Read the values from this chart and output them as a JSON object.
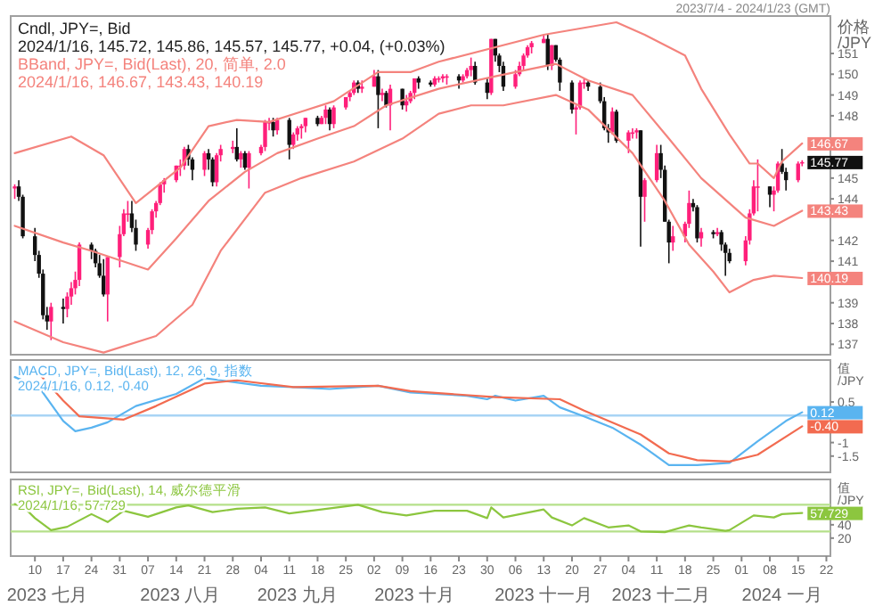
{
  "chart_data": [
    {
      "type": "candlestick",
      "subtitle": "2023/7/4 - 2024/1/23 (GMT)",
      "ylabel": "价格 /JPY",
      "tick_labels": "y",
      "xlim": [
        "2023-07-04",
        "2024-01-23"
      ],
      "ylim": [
        136.5,
        152.8
      ],
      "yticks": [
        137,
        138,
        139,
        141,
        142,
        144,
        145,
        148,
        149,
        150,
        151
      ],
      "colors": [
        "#ff1f7a",
        "#111111",
        "#111111",
        "#111111",
        "#111111",
        "#111111",
        "#111111",
        "#ff1f7a",
        "#111111",
        "#ff1f7a",
        "#ff1f7a",
        "#ff1f7a",
        "#ff1f7a",
        "#111111",
        "#111111",
        "#111111",
        "#111111",
        "#ff1f7a",
        "#ff1f7a",
        "#ff1f7a",
        "#ff1f7a",
        "#111111",
        "#111111",
        "#ff1f7a",
        "#ff1f7a",
        "#ff1f7a",
        "#ff1f7a",
        "#ff1f7a",
        "#ff1f7a",
        "#ff1f7a",
        "#ff1f7a",
        "#111111",
        "#111111",
        "#ff1f7a",
        "#111111",
        "#111111",
        "#ff1f7a",
        "#ff1f7a",
        "#ff1f7a",
        "#111111",
        "#ff1f7a",
        "#111111",
        "#ff1f7a",
        "#ff1f7a",
        "#ff1f7a",
        "#ff1f7a",
        "#111111",
        "#ff1f7a",
        "#111111",
        "#ff1f7a",
        "#ff1f7a",
        "#ff1f7a",
        "#ff1f7a",
        "#111111",
        "#ff1f7a",
        "#ff1f7a",
        "#111111",
        "#ff1f7a",
        "#ff1f7a",
        "#ff1f7a",
        "#ff1f7a",
        "#111111",
        "#ff1f7a",
        "#ff1f7a",
        "#111111",
        "#ff1f7a",
        "#111111",
        "#ff1f7a",
        "#111111",
        "#ff1f7a",
        "#ff1f7a",
        "#ff1f7a",
        "#111111",
        "#111111",
        "#ff1f7a",
        "#ff1f7a",
        "#ff1f7a",
        "#ff1f7a",
        "#111111",
        "#ff1f7a",
        "#ff1f7a",
        "#ff1f7a",
        "#111111",
        "#111111",
        "#ff1f7a",
        "#111111",
        "#111111",
        "#111111",
        "#ff1f7a",
        "#ff1f7a",
        "#ff1f7a",
        "#ff1f7a",
        "#ff1f7a",
        "#ff1f7a",
        "#111111",
        "#ff1f7a",
        "#111111",
        "#111111",
        "#111111",
        "#ff1f7a",
        "#ff1f7a",
        "#ff1f7a",
        "#111111",
        "#111111",
        "#111111",
        "#111111",
        "#ff1f7a",
        "#111111",
        "#ff1f7a",
        "#ff1f7a",
        "#ff1f7a",
        "#111111",
        "#ff1f7a",
        "#ff1f7a",
        "#111111",
        "#111111",
        "#111111",
        "#ff1f7a",
        "#ff1f7a",
        "#ff1f7a",
        "#111111",
        "#111111",
        "#ff1f7a",
        "#111111",
        "#ff1f7a",
        "#111111",
        "#111111",
        "#111111",
        "#ff1f7a",
        "#ff1f7a",
        "#ff1f7a",
        "#ff1f7a",
        "#111111",
        "#ff1f7a",
        "#ff1f7a",
        "#111111",
        "#111111",
        "#ff1f7a",
        "#ff1f7a"
      ],
      "annotations": [
        "Cndl, JPY=, Bid",
        "2024/1/16, 145.72, 145.86, 145.57, 145.77, +0.04, (+0.03%)",
        "BBand, JPY=, Bid(Last), 20, 简单, 2.0",
        "2024/1/16, 146.67, 143.43, 140.19",
        {
          "text": "145.77",
          "x": "2024-01-16",
          "y": 145.77
        }
      ],
      "x": [
        "2023-07-05",
        "2023-07-06",
        "2023-07-07",
        "2023-07-10",
        "2023-07-11",
        "2023-07-12",
        "2023-07-13",
        "2023-07-14",
        "2023-07-17",
        "2023-07-18",
        "2023-07-19",
        "2023-07-20",
        "2023-07-21",
        "2023-07-24",
        "2023-07-25",
        "2023-07-26",
        "2023-07-27",
        "2023-07-28",
        "2023-07-31",
        "2023-08-01",
        "2023-08-02",
        "2023-08-03",
        "2023-08-04",
        "2023-08-07",
        "2023-08-08",
        "2023-08-09",
        "2023-08-10",
        "2023-08-11",
        "2023-08-14",
        "2023-08-15",
        "2023-08-16",
        "2023-08-17",
        "2023-08-18",
        "2023-08-21",
        "2023-08-22",
        "2023-08-23",
        "2023-08-24",
        "2023-08-25",
        "2023-08-28",
        "2023-08-29",
        "2023-08-30",
        "2023-08-31",
        "2023-09-01",
        "2023-09-04",
        "2023-09-05",
        "2023-09-06",
        "2023-09-07",
        "2023-09-08",
        "2023-09-11",
        "2023-09-12",
        "2023-09-13",
        "2023-09-14",
        "2023-09-15",
        "2023-09-18",
        "2023-09-19",
        "2023-09-20",
        "2023-09-21",
        "2023-09-22",
        "2023-09-25",
        "2023-09-26",
        "2023-09-27",
        "2023-09-28",
        "2023-09-29",
        "2023-10-02",
        "2023-10-03",
        "2023-10-04",
        "2023-10-05",
        "2023-10-06",
        "2023-10-09",
        "2023-10-10",
        "2023-10-11",
        "2023-10-12",
        "2023-10-13",
        "2023-10-16",
        "2023-10-17",
        "2023-10-18",
        "2023-10-19",
        "2023-10-20",
        "2023-10-23",
        "2023-10-24",
        "2023-10-25",
        "2023-10-26",
        "2023-10-27",
        "2023-10-30",
        "2023-10-31",
        "2023-11-01",
        "2023-11-02",
        "2023-11-03",
        "2023-11-06",
        "2023-11-07",
        "2023-11-08",
        "2023-11-09",
        "2023-11-10",
        "2023-11-13",
        "2023-11-14",
        "2023-11-15",
        "2023-11-16",
        "2023-11-17",
        "2023-11-20",
        "2023-11-21",
        "2023-11-22",
        "2023-11-23",
        "2023-11-24",
        "2023-11-27",
        "2023-11-28",
        "2023-11-29",
        "2023-11-30",
        "2023-12-01",
        "2023-12-04",
        "2023-12-05",
        "2023-12-06",
        "2023-12-07",
        "2023-12-08",
        "2023-12-11",
        "2023-12-12",
        "2023-12-13",
        "2023-12-14",
        "2023-12-15",
        "2023-12-18",
        "2023-12-19",
        "2023-12-20",
        "2023-12-21",
        "2023-12-22",
        "2023-12-25",
        "2023-12-26",
        "2023-12-27",
        "2023-12-28",
        "2023-12-29",
        "2024-01-02",
        "2024-01-03",
        "2024-01-04",
        "2024-01-05",
        "2024-01-08",
        "2024-01-09",
        "2024-01-10",
        "2024-01-11",
        "2024-01-12",
        "2024-01-15",
        "2024-01-16"
      ],
      "ohlc": [
        [
          144.5,
          144.7,
          144.0,
          144.6
        ],
        [
          144.6,
          144.9,
          143.9,
          144.1
        ],
        [
          144.1,
          144.2,
          142.1,
          142.2
        ],
        [
          142.2,
          142.6,
          141.0,
          141.3
        ],
        [
          141.3,
          141.5,
          140.2,
          140.4
        ],
        [
          140.4,
          140.6,
          138.2,
          138.4
        ],
        [
          138.4,
          138.8,
          137.7,
          138.1
        ],
        [
          138.1,
          139.0,
          137.2,
          138.8
        ],
        [
          138.8,
          139.2,
          138.0,
          138.7
        ],
        [
          138.7,
          139.5,
          138.3,
          139.3
        ],
        [
          139.3,
          140.0,
          138.9,
          139.7
        ],
        [
          139.7,
          140.5,
          139.4,
          140.1
        ],
        [
          140.1,
          141.9,
          139.8,
          141.8
        ],
        [
          141.8,
          141.9,
          141.1,
          141.5
        ],
        [
          141.5,
          141.6,
          140.7,
          140.9
        ],
        [
          140.9,
          141.3,
          140.2,
          140.3
        ],
        [
          140.3,
          141.1,
          139.3,
          139.4
        ],
        [
          139.4,
          141.2,
          138.1,
          141.2
        ],
        [
          141.2,
          142.7,
          140.7,
          142.3
        ],
        [
          142.3,
          143.5,
          142.2,
          143.3
        ],
        [
          143.3,
          143.9,
          142.9,
          143.3
        ],
        [
          143.3,
          143.9,
          142.4,
          142.6
        ],
        [
          142.6,
          143.0,
          141.5,
          141.8
        ],
        [
          141.8,
          142.6,
          141.6,
          142.5
        ],
        [
          142.5,
          143.5,
          142.3,
          143.4
        ],
        [
          143.4,
          143.9,
          143.1,
          143.8
        ],
        [
          143.8,
          144.8,
          143.7,
          144.7
        ],
        [
          144.7,
          145.0,
          144.3,
          144.9
        ],
        [
          144.9,
          145.6,
          144.8,
          145.6
        ],
        [
          145.6,
          145.9,
          145.1,
          145.6
        ],
        [
          145.6,
          146.5,
          145.4,
          146.4
        ],
        [
          146.4,
          146.6,
          145.6,
          145.9
        ],
        [
          145.9,
          146.0,
          144.9,
          145.4
        ],
        [
          145.4,
          146.3,
          145.1,
          146.2
        ],
        [
          146.2,
          146.4,
          145.4,
          145.9
        ],
        [
          145.9,
          146.0,
          144.6,
          144.8
        ],
        [
          144.8,
          146.2,
          144.6,
          146.1
        ],
        [
          146.1,
          146.6,
          145.8,
          146.4
        ],
        [
          146.4,
          146.8,
          146.2,
          146.5
        ],
        [
          146.5,
          147.4,
          145.8,
          145.9
        ],
        [
          145.9,
          146.3,
          145.5,
          146.2
        ],
        [
          146.2,
          146.3,
          145.4,
          145.5
        ],
        [
          145.5,
          146.3,
          144.5,
          146.2
        ],
        [
          146.2,
          146.6,
          146.1,
          146.5
        ],
        [
          146.5,
          147.8,
          146.3,
          147.7
        ],
        [
          147.7,
          147.9,
          147.3,
          147.7
        ],
        [
          147.7,
          147.9,
          147.0,
          147.3
        ],
        [
          147.3,
          147.9,
          147.1,
          147.8
        ],
        [
          147.8,
          147.9,
          145.9,
          146.6
        ],
        [
          146.6,
          147.2,
          146.4,
          147.1
        ],
        [
          147.1,
          147.5,
          146.8,
          147.4
        ],
        [
          147.4,
          147.6,
          146.9,
          147.5
        ],
        [
          147.5,
          147.9,
          147.2,
          147.9
        ],
        [
          147.9,
          148.0,
          147.5,
          147.6
        ],
        [
          147.6,
          148.0,
          147.6,
          147.9
        ],
        [
          147.9,
          148.5,
          147.6,
          148.3
        ],
        [
          148.3,
          148.4,
          147.3,
          147.6
        ],
        [
          147.6,
          148.5,
          147.4,
          148.4
        ],
        [
          148.4,
          148.9,
          148.3,
          148.9
        ],
        [
          148.9,
          149.2,
          148.7,
          149.1
        ],
        [
          149.1,
          149.7,
          149.0,
          149.6
        ],
        [
          149.6,
          149.7,
          149.1,
          149.3
        ],
        [
          149.3,
          149.7,
          149.1,
          149.4
        ],
        [
          149.4,
          150.2,
          149.4,
          149.9
        ],
        [
          149.9,
          150.2,
          147.4,
          149.0
        ],
        [
          149.0,
          149.3,
          148.7,
          149.1
        ],
        [
          149.1,
          149.2,
          148.4,
          148.5
        ],
        [
          148.5,
          149.5,
          147.3,
          149.3
        ],
        [
          149.3,
          149.3,
          148.3,
          148.5
        ],
        [
          148.5,
          149.0,
          148.2,
          148.7
        ],
        [
          148.7,
          149.2,
          148.6,
          149.1
        ],
        [
          149.1,
          149.8,
          148.8,
          149.8
        ],
        [
          149.8,
          149.9,
          149.3,
          149.6
        ],
        [
          149.6,
          149.7,
          149.4,
          149.5
        ],
        [
          149.5,
          149.9,
          149.4,
          149.8
        ],
        [
          149.8,
          149.9,
          149.6,
          149.8
        ],
        [
          149.8,
          150.0,
          149.6,
          149.9
        ],
        [
          149.9,
          150.0,
          149.5,
          149.9
        ],
        [
          149.9,
          150.0,
          149.3,
          149.7
        ],
        [
          149.7,
          150.0,
          149.6,
          149.9
        ],
        [
          149.9,
          150.3,
          149.8,
          150.2
        ],
        [
          150.2,
          150.8,
          149.9,
          150.4
        ],
        [
          150.4,
          150.6,
          149.5,
          149.6
        ],
        [
          149.6,
          149.8,
          148.8,
          149.1
        ],
        [
          149.1,
          151.7,
          149.0,
          151.7
        ],
        [
          151.7,
          151.7,
          150.6,
          150.9
        ],
        [
          150.9,
          151.0,
          150.1,
          150.4
        ],
        [
          150.4,
          150.6,
          149.2,
          149.4
        ],
        [
          149.4,
          150.2,
          149.3,
          150.0
        ],
        [
          150.0,
          150.6,
          149.9,
          150.4
        ],
        [
          150.4,
          151.0,
          150.2,
          150.9
        ],
        [
          150.9,
          151.4,
          150.8,
          151.3
        ],
        [
          151.3,
          151.6,
          151.0,
          151.5
        ],
        [
          151.5,
          151.9,
          151.5,
          151.7
        ],
        [
          151.7,
          151.9,
          150.2,
          150.4
        ],
        [
          150.4,
          151.4,
          150.2,
          151.4
        ],
        [
          151.4,
          151.4,
          150.6,
          150.7
        ],
        [
          150.7,
          150.8,
          149.2,
          149.6
        ],
        [
          149.6,
          149.7,
          148.1,
          148.3
        ],
        [
          148.3,
          148.5,
          147.1,
          148.4
        ],
        [
          148.4,
          149.7,
          148.3,
          149.6
        ],
        [
          149.6,
          149.8,
          149.3,
          149.6
        ],
        [
          149.6,
          149.7,
          149.2,
          149.4
        ],
        [
          149.4,
          149.6,
          148.6,
          148.7
        ],
        [
          148.7,
          148.9,
          147.3,
          147.4
        ],
        [
          147.4,
          147.6,
          146.7,
          147.2
        ],
        [
          147.2,
          148.4,
          147.1,
          148.2
        ],
        [
          148.2,
          148.3,
          146.7,
          146.8
        ],
        [
          146.8,
          147.3,
          146.2,
          147.2
        ],
        [
          147.2,
          147.4,
          146.9,
          147.2
        ],
        [
          147.2,
          147.4,
          146.9,
          147.3
        ],
        [
          147.3,
          147.3,
          141.7,
          144.1
        ],
        [
          144.1,
          145.0,
          142.9,
          144.9
        ],
        [
          144.9,
          146.6,
          144.8,
          146.2
        ],
        [
          146.2,
          146.6,
          145.0,
          145.4
        ],
        [
          145.4,
          145.6,
          142.9,
          142.9
        ],
        [
          142.9,
          143.0,
          140.9,
          141.9
        ],
        [
          141.9,
          142.7,
          141.5,
          142.2
        ],
        [
          142.2,
          142.9,
          141.9,
          142.8
        ],
        [
          142.8,
          144.4,
          142.6,
          143.8
        ],
        [
          143.8,
          144.0,
          143.4,
          143.6
        ],
        [
          143.6,
          143.7,
          141.9,
          142.1
        ],
        [
          142.1,
          142.6,
          141.7,
          142.4
        ],
        [
          142.4,
          142.5,
          142.1,
          142.3
        ],
        [
          142.3,
          142.6,
          142.2,
          142.4
        ],
        [
          142.4,
          142.5,
          141.5,
          141.8
        ],
        [
          141.8,
          141.9,
          140.3,
          141.4
        ],
        [
          141.4,
          141.6,
          140.9,
          141.0
        ],
        [
          141.0,
          142.2,
          140.8,
          142.0
        ],
        [
          142.0,
          143.5,
          141.8,
          143.3
        ],
        [
          143.3,
          144.9,
          143.2,
          144.6
        ],
        [
          144.6,
          145.9,
          143.4,
          144.6
        ],
        [
          144.6,
          144.6,
          143.6,
          144.2
        ],
        [
          144.2,
          144.6,
          143.4,
          144.4
        ],
        [
          144.4,
          145.8,
          144.3,
          145.7
        ],
        [
          145.7,
          146.4,
          145.2,
          145.3
        ],
        [
          145.3,
          145.5,
          144.4,
          144.9
        ],
        [
          144.9,
          145.8,
          144.8,
          145.7
        ],
        [
          145.72,
          145.86,
          145.57,
          145.77
        ]
      ],
      "series": [
        {
          "type": "line",
          "color": "#f4837d",
          "x": [
            "2023-07-05",
            "2023-07-19",
            "2023-07-27",
            "2023-08-04",
            "2023-08-15",
            "2023-08-22",
            "2023-08-29",
            "2023-09-06",
            "2023-09-14",
            "2023-09-22",
            "2023-10-03",
            "2023-10-11",
            "2023-10-18",
            "2023-11-13",
            "2023-12-01",
            "2023-12-08",
            "2023-12-18",
            "2023-12-22",
            "2023-12-29",
            "2024-01-03",
            "2024-01-05",
            "2024-01-09",
            "2024-01-11",
            "2024-01-16"
          ],
          "values": [
            146.2,
            147.0,
            146.1,
            143.8,
            145.5,
            147.5,
            147.8,
            147.7,
            148.2,
            148.7,
            150.1,
            150.1,
            150.6,
            151.9,
            152.5,
            151.9,
            150.9,
            149.3,
            147.1,
            145.7,
            145.7,
            145.0,
            145.8,
            146.67
          ],
          "value_labels": [
            null,
            null,
            null,
            null,
            null,
            null,
            null,
            null,
            null,
            null,
            null,
            null,
            null,
            null,
            null,
            null,
            null,
            null,
            null,
            null,
            null,
            null,
            null,
            "146.67"
          ]
        },
        {
          "type": "line",
          "color": "#f4837d",
          "x": [
            "2023-07-05",
            "2023-07-17",
            "2023-07-24",
            "2023-08-07",
            "2023-08-14",
            "2023-08-22",
            "2023-08-31",
            "2023-09-08",
            "2023-09-18",
            "2023-09-27",
            "2023-10-05",
            "2023-10-18",
            "2023-11-01",
            "2023-11-16",
            "2023-11-24",
            "2023-12-05",
            "2023-12-14",
            "2023-12-22",
            "2024-01-02",
            "2024-01-09",
            "2024-01-16"
          ],
          "values": [
            142.7,
            141.9,
            141.5,
            140.6,
            142.1,
            143.9,
            145.3,
            146.2,
            146.9,
            147.5,
            148.5,
            149.3,
            149.9,
            150.5,
            149.7,
            149.0,
            146.9,
            145.0,
            143.1,
            142.7,
            143.43
          ],
          "value_labels": [
            null,
            null,
            null,
            null,
            null,
            null,
            null,
            null,
            null,
            null,
            null,
            null,
            null,
            null,
            null,
            null,
            null,
            null,
            null,
            null,
            "143.43"
          ]
        },
        {
          "type": "line",
          "color": "#f4837d",
          "x": [
            "2023-07-05",
            "2023-07-17",
            "2023-07-27",
            "2023-08-09",
            "2023-08-18",
            "2023-08-25",
            "2023-09-05",
            "2023-09-14",
            "2023-09-27",
            "2023-10-09",
            "2023-10-18",
            "2023-10-26",
            "2023-11-03",
            "2023-11-16",
            "2023-11-24",
            "2023-12-05",
            "2023-12-13",
            "2023-12-19",
            "2023-12-25",
            "2023-12-29",
            "2024-01-04",
            "2024-01-09",
            "2024-01-16"
          ],
          "values": [
            138.1,
            137.1,
            136.6,
            137.4,
            138.9,
            141.5,
            144.3,
            145.0,
            145.8,
            146.9,
            148.1,
            148.5,
            148.5,
            149.0,
            148.3,
            146.2,
            143.9,
            141.8,
            140.5,
            139.5,
            140.1,
            140.3,
            140.19
          ],
          "value_labels": [
            null,
            null,
            null,
            null,
            null,
            null,
            null,
            null,
            null,
            null,
            null,
            null,
            null,
            null,
            null,
            null,
            null,
            null,
            null,
            null,
            null,
            null,
            "140.19"
          ]
        }
      ]
    },
    {
      "type": "line",
      "ylabel": "值 /JPY",
      "tick_labels": "y",
      "xlim": [
        "2023-07-04",
        "2024-01-23"
      ],
      "ylim": [
        -2.1,
        2.05
      ],
      "yticks": [
        0.5,
        -1,
        -1.5
      ],
      "annotations": [
        "MACD, JPY=, Bid(Last), 12, 26, 9, 指数",
        "2024/1/16, 0.12, -0.40"
      ],
      "ref_lines": [
        {
          "axis": "y",
          "value": 0,
          "color": "#a8d4f5"
        }
      ],
      "series": [
        {
          "color": "#5ab4f0",
          "x": [
            "2023-07-05",
            "2023-07-11",
            "2023-07-17",
            "2023-07-20",
            "2023-07-24",
            "2023-07-28",
            "2023-08-04",
            "2023-08-14",
            "2023-08-21",
            "2023-08-25",
            "2023-09-04",
            "2023-09-12",
            "2023-09-21",
            "2023-10-03",
            "2023-10-11",
            "2023-10-25",
            "2023-10-30",
            "2023-11-01",
            "2023-11-06",
            "2023-11-13",
            "2023-11-17",
            "2023-11-23",
            "2023-11-30",
            "2023-12-07",
            "2023-12-14",
            "2023-12-21",
            "2023-12-29",
            "2024-01-05",
            "2024-01-12",
            "2024-01-16"
          ],
          "values": [
            1.42,
            1.05,
            -0.2,
            -0.58,
            -0.45,
            -0.25,
            0.35,
            0.8,
            1.38,
            1.3,
            1.1,
            1.05,
            0.98,
            1.1,
            0.85,
            0.73,
            0.6,
            0.73,
            0.55,
            0.73,
            0.3,
            -0.03,
            -0.45,
            -1.08,
            -1.83,
            -1.83,
            -1.75,
            -0.95,
            -0.2,
            0.12
          ],
          "value_labels": [
            null,
            null,
            null,
            null,
            null,
            null,
            null,
            null,
            null,
            null,
            null,
            null,
            null,
            null,
            null,
            null,
            null,
            null,
            null,
            null,
            null,
            null,
            null,
            null,
            null,
            null,
            null,
            null,
            null,
            "0.12"
          ]
        },
        {
          "color": "#f26b50",
          "x": [
            "2023-07-11",
            "2023-07-17",
            "2023-07-21",
            "2023-08-01",
            "2023-08-09",
            "2023-08-21",
            "2023-08-29",
            "2023-09-12",
            "2023-10-03",
            "2023-10-11",
            "2023-11-01",
            "2023-11-17",
            "2023-11-23",
            "2023-12-07",
            "2023-12-14",
            "2023-12-21",
            "2023-12-29",
            "2024-01-05",
            "2024-01-16"
          ],
          "values": [
            1.55,
            0.55,
            -0.03,
            -0.15,
            0.35,
            1.18,
            1.3,
            1.05,
            1.1,
            0.9,
            0.68,
            0.6,
            0.18,
            -0.7,
            -1.4,
            -1.65,
            -1.7,
            -1.45,
            -0.4
          ],
          "value_labels": [
            null,
            null,
            null,
            null,
            null,
            null,
            null,
            null,
            null,
            null,
            null,
            null,
            null,
            null,
            null,
            null,
            null,
            null,
            "-0.40"
          ]
        }
      ]
    },
    {
      "type": "line",
      "ylabel": "值 /JPY",
      "xlim": [
        "2023-07-04",
        "2024-01-23"
      ],
      "ylim": [
        -7,
        108
      ],
      "yticks": [
        20,
        40
      ],
      "annotations": [
        "RSI, JPY=, Bid(Last), 14, 威尔德平滑",
        "2024/1/16, 57.729"
      ],
      "ref_lines": [
        {
          "axis": "y",
          "value": 70,
          "color": "#b5e08a"
        },
        {
          "axis": "y",
          "value": 30,
          "color": "#b5e08a"
        }
      ],
      "xticks": [
        {
          "value": "2023-07-10",
          "label": "10"
        },
        {
          "value": "2023-07-17",
          "label": "17"
        },
        {
          "value": "2023-07-24",
          "label": "24"
        },
        {
          "value": "2023-07-31",
          "label": "31"
        },
        {
          "value": "2023-08-07",
          "label": "07"
        },
        {
          "value": "2023-08-14",
          "label": "14"
        },
        {
          "value": "2023-08-21",
          "label": "21"
        },
        {
          "value": "2023-08-28",
          "label": "28"
        },
        {
          "value": "2023-09-04",
          "label": "04"
        },
        {
          "value": "2023-09-11",
          "label": "11"
        },
        {
          "value": "2023-09-18",
          "label": "18"
        },
        {
          "value": "2023-09-25",
          "label": "25"
        },
        {
          "value": "2023-10-02",
          "label": "02"
        },
        {
          "value": "2023-10-09",
          "label": "09"
        },
        {
          "value": "2023-10-16",
          "label": "16"
        },
        {
          "value": "2023-10-23",
          "label": "23"
        },
        {
          "value": "2023-10-30",
          "label": "30"
        },
        {
          "value": "2023-11-06",
          "label": "06"
        },
        {
          "value": "2023-11-13",
          "label": "13"
        },
        {
          "value": "2023-11-20",
          "label": "20"
        },
        {
          "value": "2023-11-27",
          "label": "27"
        },
        {
          "value": "2023-12-04",
          "label": "04"
        },
        {
          "value": "2023-12-11",
          "label": "11"
        },
        {
          "value": "2023-12-18",
          "label": "18"
        },
        {
          "value": "2023-12-25",
          "label": "25"
        },
        {
          "value": "2024-01-01",
          "label": "01"
        },
        {
          "value": "2024-01-08",
          "label": "08"
        },
        {
          "value": "2024-01-15",
          "label": "15"
        },
        {
          "value": "2024-01-22",
          "label": "22"
        }
      ],
      "x2lim": [
        "2023-07-04",
        "2024-01-23"
      ],
      "x2ticks": [
        {
          "value": "2023-07-13",
          "label": "2023 七月"
        },
        {
          "value": "2023-08-15",
          "label": "2023 八月"
        },
        {
          "value": "2023-09-13",
          "label": "2023 九月"
        },
        {
          "value": "2023-10-12",
          "label": "2023 十月"
        },
        {
          "value": "2023-11-13",
          "label": "2023 十一月"
        },
        {
          "value": "2023-12-12",
          "label": "2023 十二月"
        },
        {
          "value": "2024-01-11",
          "label": "2024 一月"
        }
      ],
      "series": [
        {
          "color": "#8cc63f",
          "x": [
            "2023-07-05",
            "2023-07-07",
            "2023-07-10",
            "2023-07-14",
            "2023-07-18",
            "2023-07-24",
            "2023-07-28",
            "2023-08-01",
            "2023-08-07",
            "2023-08-14",
            "2023-08-17",
            "2023-08-23",
            "2023-08-29",
            "2023-09-05",
            "2023-09-11",
            "2023-09-19",
            "2023-09-28",
            "2023-10-04",
            "2023-10-10",
            "2023-10-17",
            "2023-10-25",
            "2023-10-30",
            "2023-10-31",
            "2023-11-03",
            "2023-11-13",
            "2023-11-15",
            "2023-11-20",
            "2023-11-23",
            "2023-11-29",
            "2023-12-04",
            "2023-12-07",
            "2023-12-13",
            "2023-12-19",
            "2023-12-22",
            "2023-12-28",
            "2023-12-29",
            "2024-01-04",
            "2024-01-09",
            "2024-01-11",
            "2024-01-16"
          ],
          "values": [
            71,
            68,
            50,
            32,
            37,
            56,
            44,
            61,
            52,
            66,
            69,
            59,
            64,
            66,
            57,
            63,
            70,
            59,
            54,
            61,
            61,
            50,
            66,
            51,
            63,
            51,
            39,
            50,
            36,
            39,
            30,
            29,
            39,
            36,
            31,
            32,
            54,
            51,
            56,
            57.729
          ],
          "value_labels": [
            null,
            null,
            null,
            null,
            null,
            null,
            null,
            null,
            null,
            null,
            null,
            null,
            null,
            null,
            null,
            null,
            null,
            null,
            null,
            null,
            null,
            null,
            null,
            null,
            null,
            null,
            null,
            null,
            null,
            null,
            null,
            null,
            null,
            null,
            null,
            null,
            null,
            null,
            null,
            "57.729"
          ]
        }
      ]
    }
  ]
}
